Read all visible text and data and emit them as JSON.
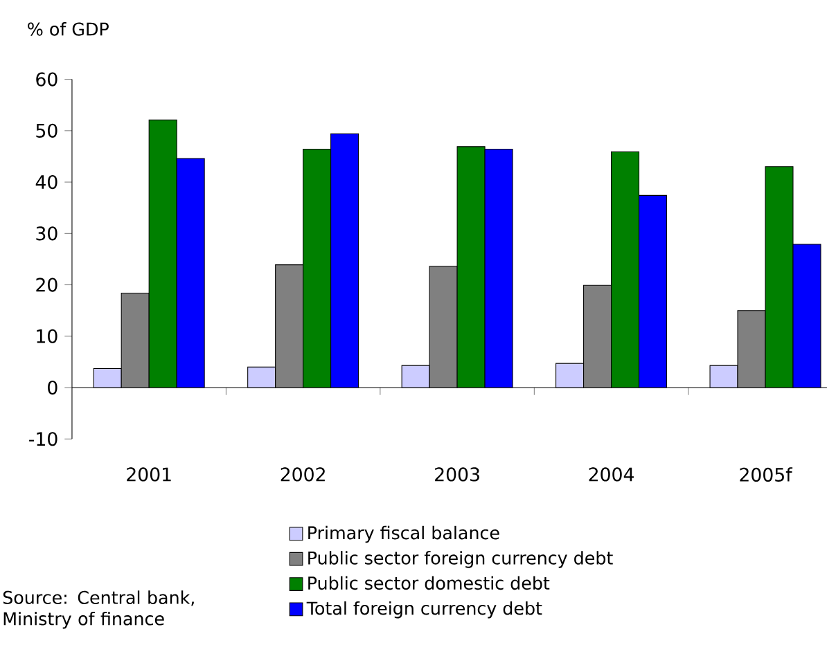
{
  "chart_data": {
    "type": "bar",
    "ylabel": "% of GDP",
    "categories": [
      "2001",
      "2002",
      "2003",
      "2004",
      "2005f"
    ],
    "series": [
      {
        "name": "Primary fiscal balance",
        "color": "#ccccff",
        "values": [
          3.7,
          4.0,
          4.3,
          4.7,
          4.3
        ]
      },
      {
        "name": "Public sector foreign currency debt",
        "color": "#808080",
        "values": [
          18.4,
          23.9,
          23.6,
          19.9,
          15.0
        ]
      },
      {
        "name": "Public sector domestic debt",
        "color": "#008000",
        "values": [
          52.1,
          46.4,
          46.9,
          45.9,
          43.0
        ]
      },
      {
        "name": "Total foreign currency debt",
        "color": "#0000ff",
        "values": [
          44.6,
          49.4,
          46.4,
          37.4,
          27.9
        ]
      }
    ],
    "ylim": [
      -10,
      60
    ],
    "yticks": [
      -10,
      0,
      10,
      20,
      30,
      40,
      50,
      60
    ],
    "legend": "bottom",
    "annotations": [
      "Source: Central bank, Ministry of finance"
    ]
  }
}
